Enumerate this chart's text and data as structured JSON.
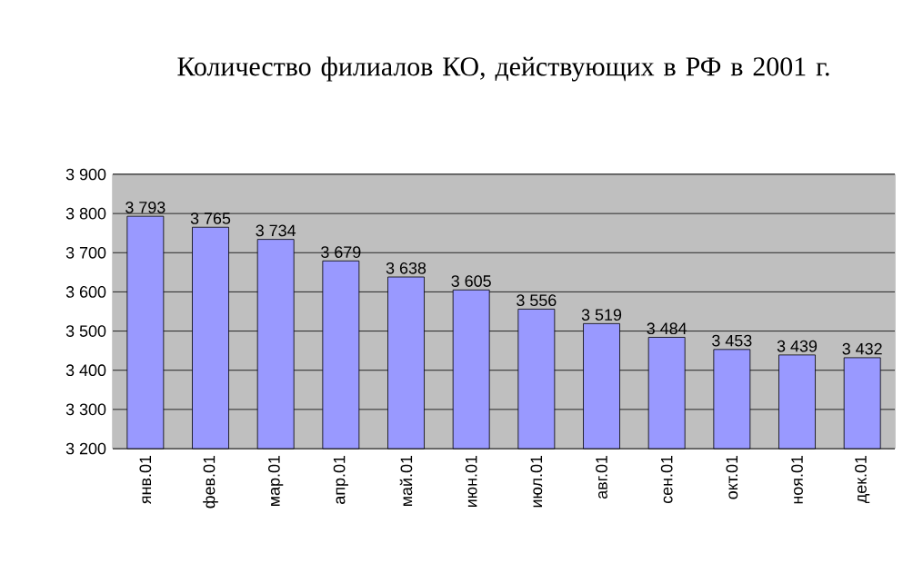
{
  "chart_data": {
    "type": "bar",
    "title": "Количество филиалов КО, действующих в РФ в 2001 г.",
    "categories": [
      "янв.01",
      "фев.01",
      "мар.01",
      "апр.01",
      "май.01",
      "июн.01",
      "июл.01",
      "авг.01",
      "сен.01",
      "окт.01",
      "ноя.01",
      "дек.01"
    ],
    "values": [
      3793,
      3765,
      3734,
      3679,
      3638,
      3605,
      3556,
      3519,
      3484,
      3453,
      3439,
      3432
    ],
    "value_labels": [
      "3 793",
      "3 765",
      "3 734",
      "3 679",
      "3 638",
      "3 605",
      "3 556",
      "3 519",
      "3 484",
      "3 453",
      "3 439",
      "3 432"
    ],
    "color": "#9999ff",
    "ylim": [
      3200,
      3900
    ],
    "yticks": [
      {
        "value": 3200,
        "label": "3 200"
      },
      {
        "value": 3300,
        "label": "3 300"
      },
      {
        "value": 3400,
        "label": "3 400"
      },
      {
        "value": 3500,
        "label": "3 500"
      },
      {
        "value": 3600,
        "label": "3 600"
      },
      {
        "value": 3700,
        "label": "3 700"
      },
      {
        "value": 3800,
        "label": "3 800"
      },
      {
        "value": 3900,
        "label": "3 900"
      }
    ],
    "grid": "y"
  }
}
